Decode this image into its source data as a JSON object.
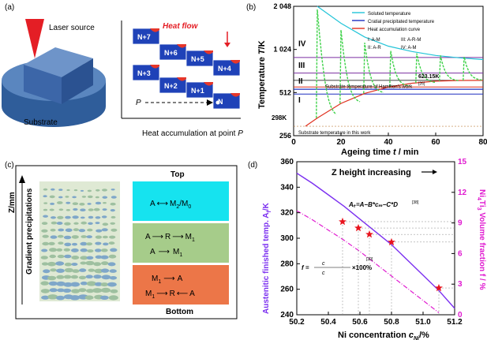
{
  "panel_a": {
    "label": "(a)",
    "laser_label": "Laser source",
    "substrate_label": "Substrate",
    "caption_prefix": "Heat accumulation at point ",
    "caption_var": "P",
    "heat_flow_label": "Heat flow",
    "point_label": "P",
    "blocks": [
      "N+7",
      "N+6",
      "N+5",
      "N+4",
      "N+3",
      "N+2",
      "N+1",
      "N"
    ]
  },
  "chart_b": {
    "label": "(b)",
    "type": "line",
    "xlabel_prefix": "Ageing time ",
    "xlabel_var": "t",
    "xlabel_suffix": " / min",
    "ylabel_prefix": "Temperature ",
    "ylabel_var": "T",
    "ylabel_suffix": "/K",
    "xlim": [
      0,
      80
    ],
    "ylim_log2": [
      256,
      2048
    ],
    "x_ticks": [
      "0",
      "20",
      "40",
      "60",
      "80"
    ],
    "y_ticks": [
      "2 048",
      "1 024",
      "512",
      "256"
    ],
    "legend": [
      {
        "name": "Soluted temperature",
        "color": "#22c4d8"
      },
      {
        "name": "Cratial precipitated temperature",
        "color": "#1f2fc0"
      },
      {
        "name": "Heat accumulation curve",
        "color": "#e0311f"
      }
    ],
    "regions": [
      "IV",
      "III",
      "II",
      "I"
    ],
    "region_key": [
      "I: A-M",
      "III: A-R-M",
      "II: A-R",
      "IV: A-M"
    ],
    "annotations": {
      "t623": "623.15K",
      "t298": "298K",
      "hamilton": "Substrate temperature of Hamilton's work",
      "hamilton_ref": "[26]",
      "this_work": "Substrate temperature in this work"
    },
    "peaks": [
      {
        "t": 10,
        "T": 1950
      },
      {
        "t": 20,
        "T": 1400
      },
      {
        "t": 30,
        "T": 1140
      },
      {
        "t": 41,
        "T": 1000
      },
      {
        "t": 52,
        "T": 960
      },
      {
        "t": 62,
        "T": 930
      },
      {
        "t": 72,
        "T": 910
      }
    ],
    "heat_accumulation": [
      [
        5,
        298
      ],
      [
        10,
        340
      ],
      [
        20,
        430
      ],
      [
        30,
        505
      ],
      [
        40,
        560
      ],
      [
        50,
        595
      ],
      [
        60,
        615
      ],
      [
        70,
        622
      ],
      [
        80,
        623
      ]
    ],
    "soluted_temp": [
      [
        10,
        2048
      ],
      [
        20,
        1560
      ],
      [
        30,
        1250
      ],
      [
        40,
        1080
      ],
      [
        50,
        990
      ],
      [
        60,
        930
      ],
      [
        70,
        895
      ],
      [
        80,
        870
      ]
    ],
    "critical_precip": [
      [
        0,
        540
      ],
      [
        80,
        540
      ]
    ]
  },
  "panel_c": {
    "label": "(c)",
    "y_axis": "Z/mm",
    "gradient_label": "Gradient precipitations",
    "top_label": "Top",
    "bottom_label": "Bottom",
    "box1": {
      "left": "A",
      "right": "M",
      "right_sub": "2",
      "right_tail": "/M",
      "tail_sub": "0"
    },
    "box2": {
      "line1_a": "A",
      "line1_b": "R",
      "line1_c": "M",
      "line1_sub": "1",
      "line2_a": "A",
      "line2_b": "M",
      "line2_sub": "1"
    },
    "box3": {
      "line1_a": "M",
      "line1_sub": "1",
      "line1_b": "A",
      "line2_a": "M",
      "line2_sub": "1",
      "line2_b": "R",
      "line2_c": "A"
    },
    "colors": {
      "top": "#16e3ef",
      "mid": "#a6cc8a",
      "bottom": "#ec7648"
    }
  },
  "chart_d": {
    "label": "(d)",
    "type": "line",
    "title": "Z height increasing",
    "xlabel_prefix": "Ni concentration ",
    "xlabel_var": "c",
    "xlabel_sub": "Ni",
    "xlabel_suffix": "/%",
    "ylabel_left": "Austenitic finished temp. A",
    "ylabel_left_sub": "f",
    "ylabel_left_suffix": "/K",
    "ylabel_right": "Ni",
    "ylabel_right_tail": "Ti",
    "ylabel_right_suffix": " Volume fraction f / %",
    "ylabel_right_sub1": "4",
    "ylabel_right_sub2": "3",
    "xlim": [
      50.2,
      51.2
    ],
    "ylim_left": [
      240,
      360
    ],
    "ylim_right": [
      0,
      15
    ],
    "x_ticks": [
      "50.2",
      "50.4",
      "50.6",
      "50.8",
      "51.0",
      "51.2"
    ],
    "y_left_ticks": [
      "240",
      "260",
      "280",
      "300",
      "320",
      "340",
      "360"
    ],
    "y_right_ticks": [
      "0",
      "3",
      "6",
      "9",
      "12",
      "15"
    ],
    "formula1": "Aₑ=A−B*cₘ−C*D",
    "formula1_text": "A",
    "formula1_rest": "=A−B*c",
    "formula1_ref": "[38]",
    "formula2_prefix": "f =",
    "formula2_num": "c",
    "formula2_tail": "×100%",
    "ref_30": "[30]",
    "af_curve": [
      [
        50.2,
        351
      ],
      [
        50.3,
        343
      ],
      [
        50.4,
        334
      ],
      [
        50.5,
        325
      ],
      [
        50.6,
        315
      ],
      [
        50.7,
        305
      ],
      [
        50.8,
        295
      ],
      [
        50.9,
        283
      ],
      [
        51.0,
        271
      ],
      [
        51.1,
        259
      ],
      [
        51.2,
        245
      ]
    ],
    "stars": [
      [
        50.49,
        313
      ],
      [
        50.59,
        308
      ],
      [
        50.66,
        303
      ],
      [
        50.8,
        297
      ],
      [
        51.1,
        261
      ]
    ],
    "volume_fraction": [
      [
        50.2,
        10.2
      ],
      [
        50.3,
        9.3
      ],
      [
        50.4,
        8.3
      ],
      [
        50.5,
        7.3
      ],
      [
        50.6,
        6.2
      ],
      [
        50.7,
        5.0
      ],
      [
        50.8,
        3.8
      ],
      [
        50.9,
        2.6
      ],
      [
        51.0,
        1.4
      ],
      [
        51.1,
        0.2
      ]
    ],
    "colors": {
      "af": "#7b2ff0",
      "vf": "#e01ad0",
      "star": "#e8141e"
    }
  }
}
